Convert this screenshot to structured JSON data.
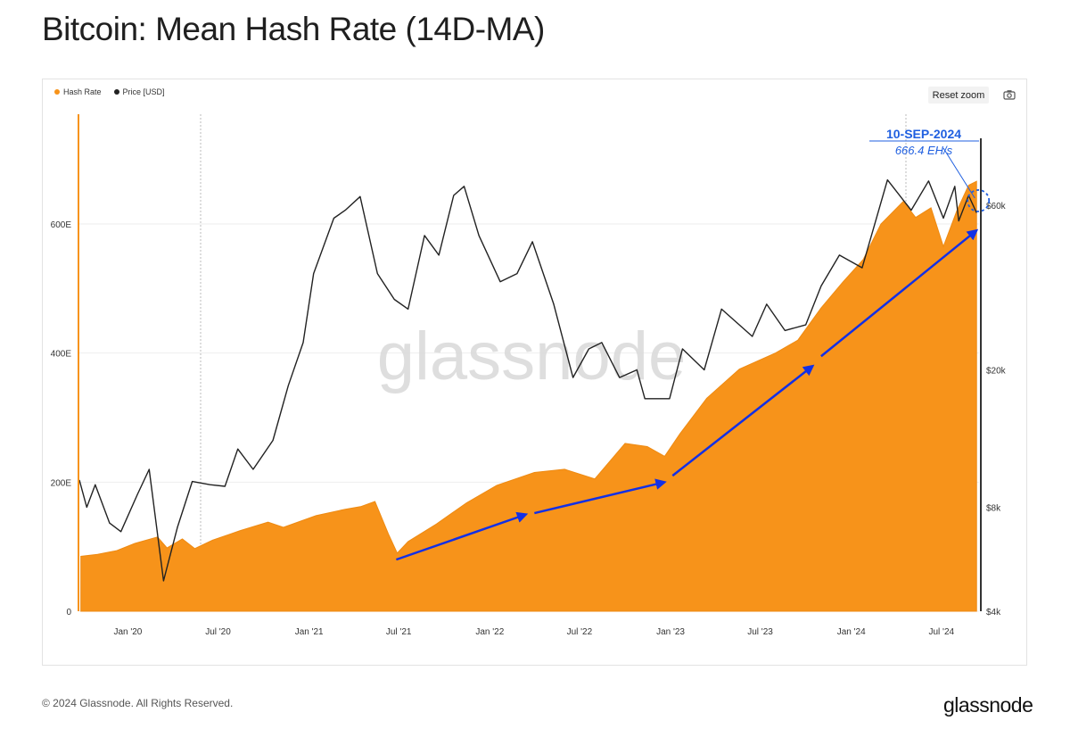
{
  "header": {
    "title": "Bitcoin: Mean Hash Rate (14D-MA)"
  },
  "legend": {
    "items": [
      {
        "label": "Hash Rate",
        "color": "#f7931a"
      },
      {
        "label": "Price [USD]",
        "color": "#222222"
      }
    ]
  },
  "toolbar": {
    "reset_zoom_label": "Reset zoom",
    "camera_icon": "camera-icon"
  },
  "watermark": "glassnode",
  "footer": {
    "copyright": "© 2024 Glassnode. All Rights Reserved.",
    "logo": "glassnode"
  },
  "annotation": {
    "date": "10-SEP-2024",
    "value": "666.4 EH/s"
  },
  "colors": {
    "hash_rate": "#f7931a",
    "price": "#222222",
    "arrow": "#1230e6",
    "annotation": "#1f5fe0"
  },
  "chart_data": {
    "type": "area",
    "x_ticks": [
      "Jan '20",
      "Jul '20",
      "Jan '21",
      "Jul '21",
      "Jan '22",
      "Jul '22",
      "Jan '23",
      "Jul '23",
      "Jan '24",
      "Jul '24"
    ],
    "y_left_ticks": [
      "0",
      "200E",
      "400E",
      "600E"
    ],
    "y_right_ticks": [
      "$4k",
      "$8k",
      "$20k",
      "$60k"
    ],
    "y_left_range": [
      0,
      770
    ],
    "y_right_scale": "log",
    "y_right_range": [
      4000,
      110000
    ],
    "x_range": [
      "2019-09-25",
      "2024-09-15"
    ],
    "series": [
      {
        "name": "Hash Rate",
        "axis": "left",
        "points": [
          [
            "2019-09-28",
            85
          ],
          [
            "2019-11-01",
            88
          ],
          [
            "2019-12-10",
            94
          ],
          [
            "2020-01-15",
            105
          ],
          [
            "2020-03-01",
            115
          ],
          [
            "2020-03-20",
            98
          ],
          [
            "2020-04-20",
            112
          ],
          [
            "2020-05-15",
            97
          ],
          [
            "2020-06-20",
            110
          ],
          [
            "2020-08-15",
            125
          ],
          [
            "2020-10-10",
            138
          ],
          [
            "2020-11-10",
            130
          ],
          [
            "2021-01-15",
            148
          ],
          [
            "2021-03-15",
            158
          ],
          [
            "2021-04-15",
            162
          ],
          [
            "2021-05-14",
            170
          ],
          [
            "2021-06-10",
            120
          ],
          [
            "2021-06-28",
            90
          ],
          [
            "2021-07-20",
            108
          ],
          [
            "2021-09-15",
            135
          ],
          [
            "2021-11-15",
            168
          ],
          [
            "2022-01-15",
            195
          ],
          [
            "2022-04-01",
            215
          ],
          [
            "2022-06-01",
            220
          ],
          [
            "2022-08-01",
            205
          ],
          [
            "2022-10-01",
            260
          ],
          [
            "2022-11-15",
            255
          ],
          [
            "2022-12-20",
            240
          ],
          [
            "2023-01-20",
            275
          ],
          [
            "2023-03-15",
            330
          ],
          [
            "2023-05-20",
            375
          ],
          [
            "2023-08-01",
            400
          ],
          [
            "2023-09-15",
            420
          ],
          [
            "2023-11-01",
            470
          ],
          [
            "2023-12-15",
            510
          ],
          [
            "2024-01-25",
            545
          ],
          [
            "2024-03-01",
            600
          ],
          [
            "2024-04-15",
            635
          ],
          [
            "2024-05-10",
            610
          ],
          [
            "2024-06-10",
            625
          ],
          [
            "2024-07-05",
            565
          ],
          [
            "2024-08-01",
            620
          ],
          [
            "2024-08-25",
            660
          ],
          [
            "2024-09-10",
            666
          ]
        ]
      },
      {
        "name": "Price [USD]",
        "axis": "right",
        "points": [
          [
            "2019-09-25",
            9600
          ],
          [
            "2019-10-10",
            8000
          ],
          [
            "2019-10-27",
            9300
          ],
          [
            "2019-11-25",
            7200
          ],
          [
            "2019-12-18",
            6800
          ],
          [
            "2020-01-20",
            8700
          ],
          [
            "2020-02-13",
            10300
          ],
          [
            "2020-03-13",
            4900
          ],
          [
            "2020-04-10",
            7000
          ],
          [
            "2020-05-10",
            9500
          ],
          [
            "2020-06-15",
            9300
          ],
          [
            "2020-07-15",
            9200
          ],
          [
            "2020-08-10",
            11800
          ],
          [
            "2020-09-10",
            10300
          ],
          [
            "2020-10-20",
            12500
          ],
          [
            "2020-11-20",
            18000
          ],
          [
            "2020-12-20",
            24000
          ],
          [
            "2021-01-10",
            38000
          ],
          [
            "2021-02-20",
            55000
          ],
          [
            "2021-03-15",
            58000
          ],
          [
            "2021-04-14",
            63500
          ],
          [
            "2021-05-19",
            38000
          ],
          [
            "2021-06-22",
            32000
          ],
          [
            "2021-07-20",
            30000
          ],
          [
            "2021-08-22",
            49000
          ],
          [
            "2021-09-20",
            43000
          ],
          [
            "2021-10-20",
            64000
          ],
          [
            "2021-11-10",
            68000
          ],
          [
            "2021-12-10",
            49000
          ],
          [
            "2022-01-22",
            36000
          ],
          [
            "2022-02-25",
            38000
          ],
          [
            "2022-03-28",
            47000
          ],
          [
            "2022-05-10",
            31000
          ],
          [
            "2022-06-18",
            19000
          ],
          [
            "2022-07-20",
            23000
          ],
          [
            "2022-08-15",
            24000
          ],
          [
            "2022-09-20",
            19000
          ],
          [
            "2022-10-25",
            20000
          ],
          [
            "2022-11-10",
            16500
          ],
          [
            "2022-12-30",
            16500
          ],
          [
            "2023-01-25",
            23000
          ],
          [
            "2023-03-10",
            20000
          ],
          [
            "2023-04-14",
            30000
          ],
          [
            "2023-06-15",
            25000
          ],
          [
            "2023-07-14",
            31000
          ],
          [
            "2023-08-20",
            26000
          ],
          [
            "2023-10-01",
            27000
          ],
          [
            "2023-11-01",
            35000
          ],
          [
            "2023-12-08",
            43000
          ],
          [
            "2024-01-23",
            39500
          ],
          [
            "2024-03-14",
            71000
          ],
          [
            "2024-05-01",
            58000
          ],
          [
            "2024-06-05",
            70500
          ],
          [
            "2024-07-05",
            55000
          ],
          [
            "2024-07-28",
            68000
          ],
          [
            "2024-08-05",
            54000
          ],
          [
            "2024-08-25",
            64000
          ],
          [
            "2024-09-10",
            57000
          ]
        ]
      }
    ]
  }
}
